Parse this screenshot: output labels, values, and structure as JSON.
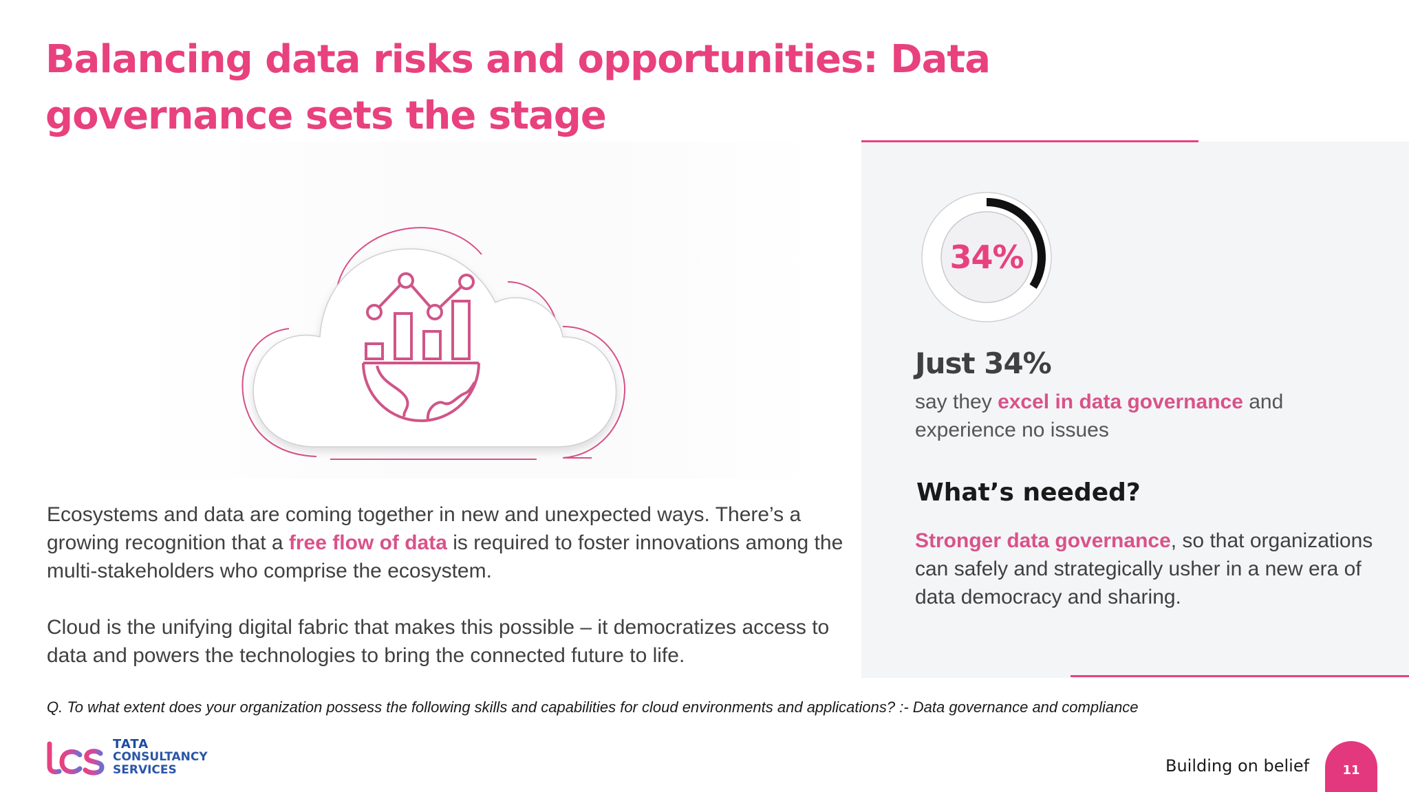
{
  "slide": {
    "title": "Balancing data risks and opportunities: Data governance sets the stage"
  },
  "left": {
    "para1": {
      "before": "Ecosystems and data are coming together in new and unexpected ways. There’s a growing recognition that a ",
      "highlight": "free flow of data",
      "after": " is required to foster innovations among the multi-stakeholders who comprise the ecosystem."
    },
    "para2": "Cloud is the unifying digital fabric that makes this possible – it democratizes access to data and powers the technologies to bring the connected future to life."
  },
  "stat": {
    "gauge_label": "34%",
    "gauge_fraction": 0.34,
    "headline": "Just 34%",
    "desc_before": "say they ",
    "desc_highlight": "excel in data governance",
    "desc_after": " and experience no issues"
  },
  "needed": {
    "heading": "What’s needed?",
    "highlight": "Stronger data governance",
    "text": ", so that organizations can safely and strategically usher in a new era of data democracy and sharing."
  },
  "footer": {
    "question": "Q. To what extent does your organization possess the following skills and capabilities for cloud environments and applications? :- Data governance and compliance",
    "logo_line1": "TATA",
    "logo_line2": "CONSULTANCY",
    "logo_line3": "SERVICES",
    "tagline": "Building on belief",
    "page_number": "11"
  },
  "colors": {
    "accent": "#e8417e",
    "panel": "#f4f5f7",
    "logo_blue": "#2b56a8"
  },
  "icons": [
    "cloud-analytics-icon",
    "globe-icon",
    "bar-chart-icon",
    "tcs-logo"
  ]
}
